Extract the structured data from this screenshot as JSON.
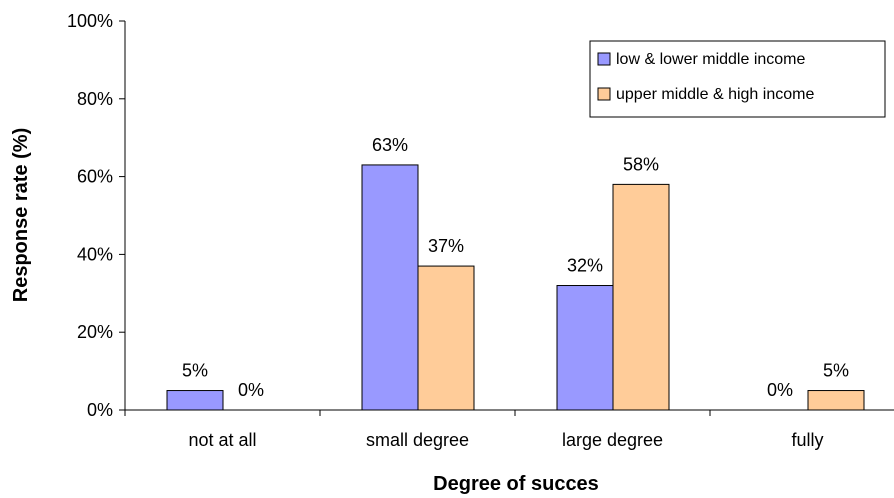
{
  "chart_data": {
    "type": "bar",
    "categories": [
      "not at all",
      "small degree",
      "large degree",
      "fully"
    ],
    "series": [
      {
        "name": "low & lower middle income",
        "color": "#9999ff",
        "values": [
          5,
          63,
          32,
          0
        ],
        "labels": [
          "5%",
          "63%",
          "32%",
          "0%"
        ]
      },
      {
        "name": "upper middle & high income",
        "color": "#ffcc99",
        "values": [
          0,
          37,
          58,
          5
        ],
        "labels": [
          "0%",
          "37%",
          "58%",
          "5%"
        ]
      }
    ],
    "xlabel": "Degree of succes",
    "ylabel": "Response rate (%)",
    "ylim": [
      0,
      100
    ],
    "yticks": [
      0,
      20,
      40,
      60,
      80,
      100
    ],
    "ytick_labels": [
      "0%",
      "20%",
      "40%",
      "60%",
      "80%",
      "100%"
    ],
    "grid": false,
    "legend_position": "top-right"
  }
}
